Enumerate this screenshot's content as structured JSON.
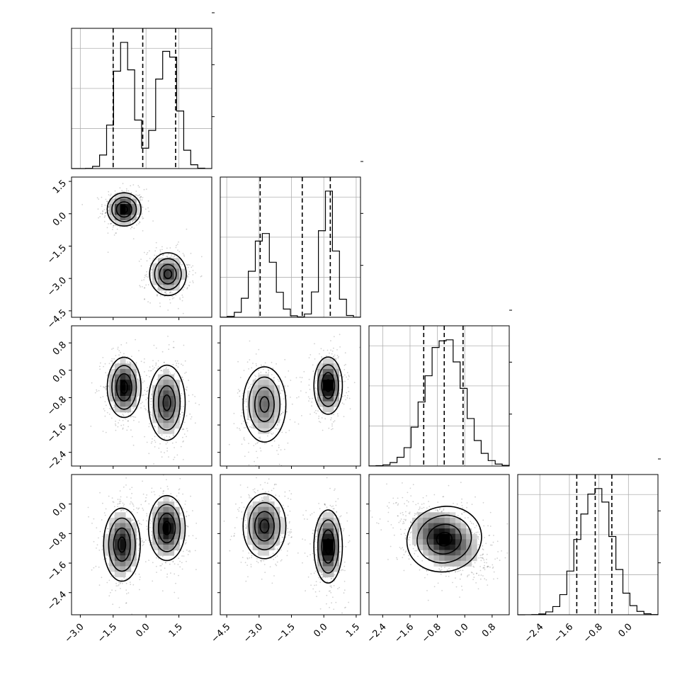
{
  "chart_data": {
    "type": "corner",
    "grid": true,
    "parameters": [
      {
        "range": [
          -3.4,
          3.0
        ],
        "ticks": [
          -3.0,
          -1.5,
          0.0,
          1.5
        ],
        "tick_labels": [
          "−3.0",
          "−1.5",
          "0.0",
          "1.5"
        ],
        "modes": [
          {
            "mu": -1.0,
            "sd": 0.45,
            "w": 0.5
          },
          {
            "mu": 1.0,
            "sd": 0.45,
            "w": 0.5
          }
        ],
        "quantiles": [
          -1.5,
          -0.15,
          1.35
        ]
      },
      {
        "range": [
          -4.8,
          1.7
        ],
        "ticks": [
          -4.5,
          -3.0,
          -1.5,
          0.0,
          1.5
        ],
        "tick_labels": [
          "−4.5",
          "−3.0",
          "−1.5",
          "0.0",
          "1.5"
        ],
        "modes": [
          {
            "mu": -2.8,
            "sd": 0.5,
            "w": 0.5
          },
          {
            "mu": 0.2,
            "sd": 0.35,
            "w": 0.5
          }
        ],
        "quantiles": [
          -2.95,
          -1.0,
          0.3
        ]
      },
      {
        "range": [
          -2.8,
          1.3
        ],
        "ticks": [
          -2.4,
          -1.6,
          -0.8,
          0.0,
          0.8
        ],
        "tick_labels": [
          "−2.4",
          "−1.6",
          "−0.8",
          "0.0",
          "0.8"
        ],
        "modes": [
          {
            "mu": -0.6,
            "sd": 0.55,
            "w": 1.0
          }
        ],
        "quantiles": [
          -1.2,
          -0.6,
          -0.05
        ]
      },
      {
        "range": [
          -3.0,
          0.8
        ],
        "ticks": [
          -2.4,
          -1.6,
          -0.8,
          0.0
        ],
        "tick_labels": [
          "−2.4",
          "−1.6",
          "−0.8",
          "0.0"
        ],
        "modes": [
          {
            "mu": -0.9,
            "sd": 0.45,
            "w": 1.0
          }
        ],
        "quantiles": [
          -1.4,
          -0.9,
          -0.45
        ]
      }
    ],
    "pair_clusters": [
      {
        "i": 1,
        "j": 0,
        "blobs": [
          {
            "mx": -1.0,
            "my": 0.2,
            "sx": 0.35,
            "sy": 0.35,
            "w": 0.5,
            "r": 0.0
          },
          {
            "mx": 1.0,
            "my": -2.8,
            "sx": 0.38,
            "sy": 0.45,
            "w": 0.5,
            "r": 0.0
          }
        ]
      },
      {
        "i": 2,
        "j": 0,
        "blobs": [
          {
            "mx": -1.0,
            "my": -0.5,
            "sx": 0.35,
            "sy": 0.4,
            "w": 0.5,
            "r": 0.0
          },
          {
            "mx": 0.95,
            "my": -0.95,
            "sx": 0.38,
            "sy": 0.5,
            "w": 0.5,
            "r": 0.0
          }
        ]
      },
      {
        "i": 2,
        "j": 1,
        "blobs": [
          {
            "mx": -2.75,
            "my": -1.0,
            "sx": 0.45,
            "sy": 0.5,
            "w": 0.5,
            "r": 0.0
          },
          {
            "mx": 0.2,
            "my": -0.45,
            "sx": 0.3,
            "sy": 0.38,
            "w": 0.5,
            "r": 0.0
          }
        ]
      },
      {
        "i": 3,
        "j": 0,
        "blobs": [
          {
            "mx": -1.1,
            "my": -1.1,
            "sx": 0.38,
            "sy": 0.45,
            "w": 0.5,
            "r": 0.0
          },
          {
            "mx": 0.95,
            "my": -0.65,
            "sx": 0.38,
            "sy": 0.4,
            "w": 0.5,
            "r": 0.0
          }
        ]
      },
      {
        "i": 3,
        "j": 1,
        "blobs": [
          {
            "mx": -2.75,
            "my": -0.6,
            "sx": 0.45,
            "sy": 0.4,
            "w": 0.5,
            "r": 0.0
          },
          {
            "mx": 0.2,
            "my": -1.15,
            "sx": 0.3,
            "sy": 0.45,
            "w": 0.5,
            "r": 0.0
          }
        ]
      },
      {
        "i": 3,
        "j": 2,
        "blobs": [
          {
            "mx": -0.6,
            "my": -0.95,
            "sx": 0.5,
            "sy": 0.4,
            "w": 1.0,
            "r": -0.35
          }
        ]
      }
    ]
  }
}
